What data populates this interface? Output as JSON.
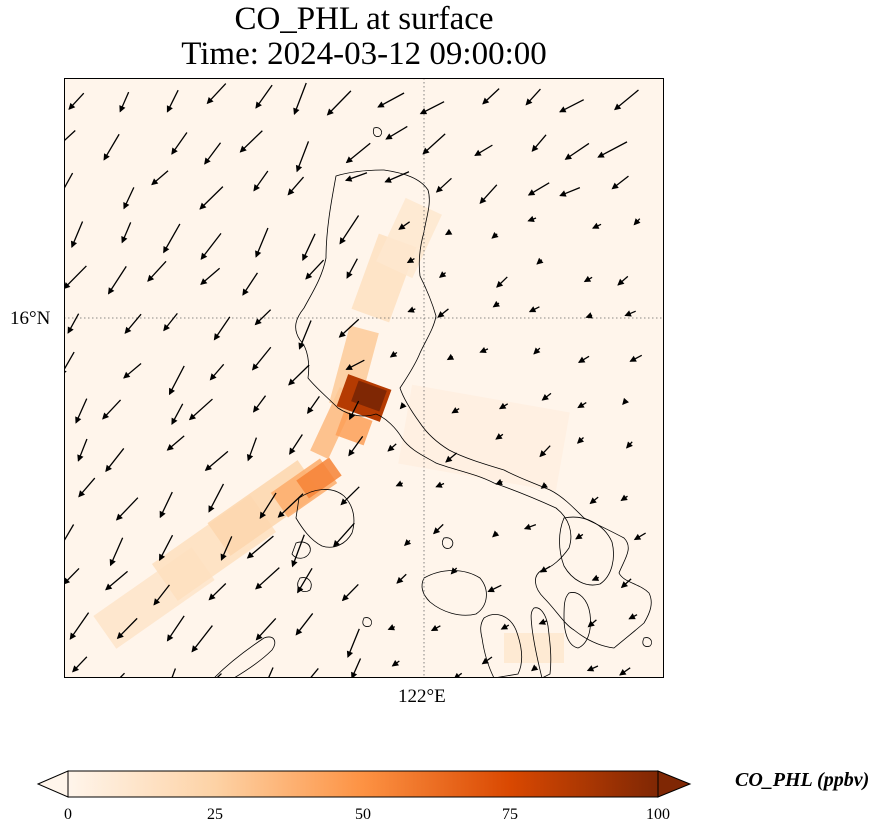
{
  "title": {
    "line1": "CO_PHL at surface",
    "line2": "Time: 2024-03-12 09:00:00"
  },
  "axes": {
    "lat_label": "16°N",
    "lon_label": "122°E"
  },
  "colorbar": {
    "label": "CO_PHL (ppbv)",
    "ticks": [
      "0",
      "25",
      "50",
      "75",
      "100"
    ],
    "min": 0,
    "max": 100,
    "colors": [
      "#fff5eb",
      "#fdd2a5",
      "#fd9243",
      "#d94801",
      "#7f2704"
    ]
  },
  "map": {
    "background": "#fff5eb",
    "gridline_style": "dotted",
    "coastline_color": "#000000",
    "vector_color": "#000000"
  }
}
